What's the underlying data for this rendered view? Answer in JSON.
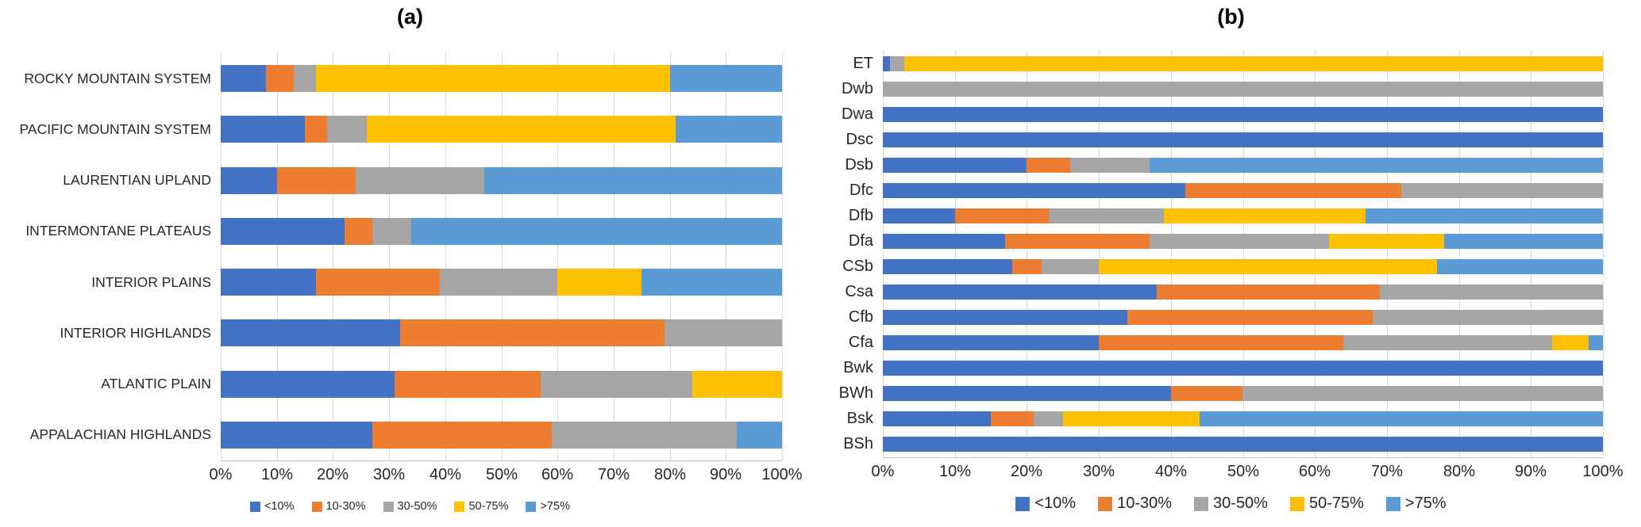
{
  "page": {
    "background": "#ffffff"
  },
  "legend": {
    "labels": [
      "<10%",
      "10-30%",
      "30-50%",
      "50-75%",
      ">75%"
    ]
  },
  "colors": {
    "lt10": "#4472C4",
    "b10_30": "#ED7D31",
    "b30_50": "#A5A5A5",
    "b50_75": "#FFC000",
    "gt75": "#5B9BD5",
    "gridline": "#d9d9d9"
  },
  "chart_data": [
    {
      "type": "bar",
      "orientation": "horizontal-stacked",
      "title": "(a)",
      "xlim": [
        0,
        100
      ],
      "grid": true,
      "legend_position": "bottom",
      "x_ticks": [
        "0%",
        "10%",
        "20%",
        "30%",
        "40%",
        "50%",
        "60%",
        "70%",
        "80%",
        "90%",
        "100%"
      ],
      "categories": [
        "ROCKY MOUNTAIN SYSTEM",
        "PACIFIC MOUNTAIN SYSTEM",
        "LAURENTIAN UPLAND",
        "INTERMONTANE PLATEAUS",
        "INTERIOR PLAINS",
        "INTERIOR HIGHLANDS",
        "ATLANTIC PLAIN",
        "APPALACHIAN HIGHLANDS"
      ],
      "series": [
        {
          "name": "<10%",
          "color": "#4472C4",
          "values": [
            8,
            15,
            10,
            22,
            17,
            32,
            31,
            27
          ]
        },
        {
          "name": "10-30%",
          "color": "#ED7D31",
          "values": [
            5,
            4,
            14,
            5,
            22,
            47,
            26,
            32
          ]
        },
        {
          "name": "30-50%",
          "color": "#A5A5A5",
          "values": [
            4,
            7,
            23,
            7,
            21,
            21,
            27,
            33
          ]
        },
        {
          "name": "50-75%",
          "color": "#FFC000",
          "values": [
            63,
            55,
            0,
            0,
            15,
            0,
            16,
            0
          ]
        },
        {
          "name": ">75%",
          "color": "#5B9BD5",
          "values": [
            20,
            19,
            53,
            66,
            25,
            0,
            0,
            8
          ]
        }
      ]
    },
    {
      "type": "bar",
      "orientation": "horizontal-stacked",
      "title": "(b)",
      "xlim": [
        0,
        100
      ],
      "grid": true,
      "legend_position": "bottom",
      "x_ticks": [
        "0%",
        "10%",
        "20%",
        "30%",
        "40%",
        "50%",
        "60%",
        "70%",
        "80%",
        "90%",
        "100%"
      ],
      "categories": [
        "ET",
        "Dwb",
        "Dwa",
        "Dsc",
        "Dsb",
        "Dfc",
        "Dfb",
        "Dfa",
        "CSb",
        "Csa",
        "Cfb",
        "Cfa",
        "Bwk",
        "BWh",
        "Bsk",
        "BSh"
      ],
      "series": [
        {
          "name": "<10%",
          "color": "#4472C4",
          "values": [
            1,
            0,
            100,
            100,
            20,
            42,
            10,
            17,
            18,
            38,
            34,
            30,
            100,
            40,
            15,
            100
          ]
        },
        {
          "name": "10-30%",
          "color": "#ED7D31",
          "values": [
            0,
            0,
            0,
            0,
            6,
            30,
            13,
            20,
            4,
            31,
            34,
            34,
            0,
            10,
            6,
            0
          ]
        },
        {
          "name": "30-50%",
          "color": "#A5A5A5",
          "values": [
            2,
            100,
            0,
            0,
            11,
            28,
            16,
            25,
            8,
            31,
            32,
            29,
            0,
            50,
            4,
            0
          ]
        },
        {
          "name": "50-75%",
          "color": "#FFC000",
          "values": [
            97,
            0,
            0,
            0,
            0,
            0,
            28,
            16,
            47,
            0,
            0,
            5,
            0,
            0,
            19,
            0
          ]
        },
        {
          "name": ">75%",
          "color": "#5B9BD5",
          "values": [
            0,
            0,
            0,
            0,
            63,
            0,
            33,
            22,
            23,
            0,
            0,
            2,
            0,
            0,
            56,
            0
          ]
        }
      ]
    }
  ]
}
